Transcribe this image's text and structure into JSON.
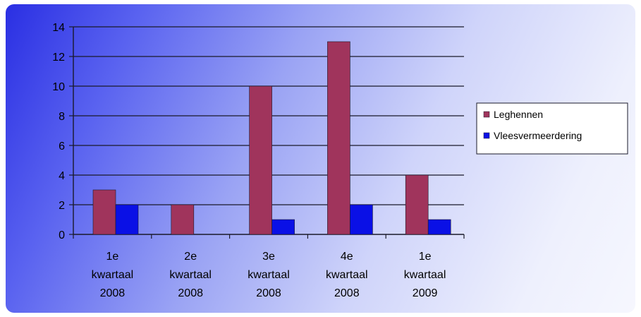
{
  "colors": {
    "series_1": "#a0345c",
    "series_2": "#0a10e6",
    "gridline": "#1a1a2a"
  },
  "chart_data": {
    "type": "bar",
    "categories": [
      [
        "1e",
        "kwartaal",
        "2008"
      ],
      [
        "2e",
        "kwartaal",
        "2008"
      ],
      [
        "3e",
        "kwartaal",
        "2008"
      ],
      [
        "4e",
        "kwartaal",
        "2008"
      ],
      [
        "1e",
        "kwartaal",
        "2009"
      ]
    ],
    "series": [
      {
        "name": "Leghennen",
        "values": [
          3,
          2,
          10,
          13,
          4
        ]
      },
      {
        "name": "Vleesvermeerdering",
        "values": [
          2,
          0,
          1,
          2,
          1
        ]
      }
    ],
    "yticks": [
      "0",
      "2",
      "4",
      "6",
      "8",
      "10",
      "12",
      "14"
    ],
    "ylim": [
      0,
      14
    ],
    "grid": true,
    "legend_position": "right"
  }
}
